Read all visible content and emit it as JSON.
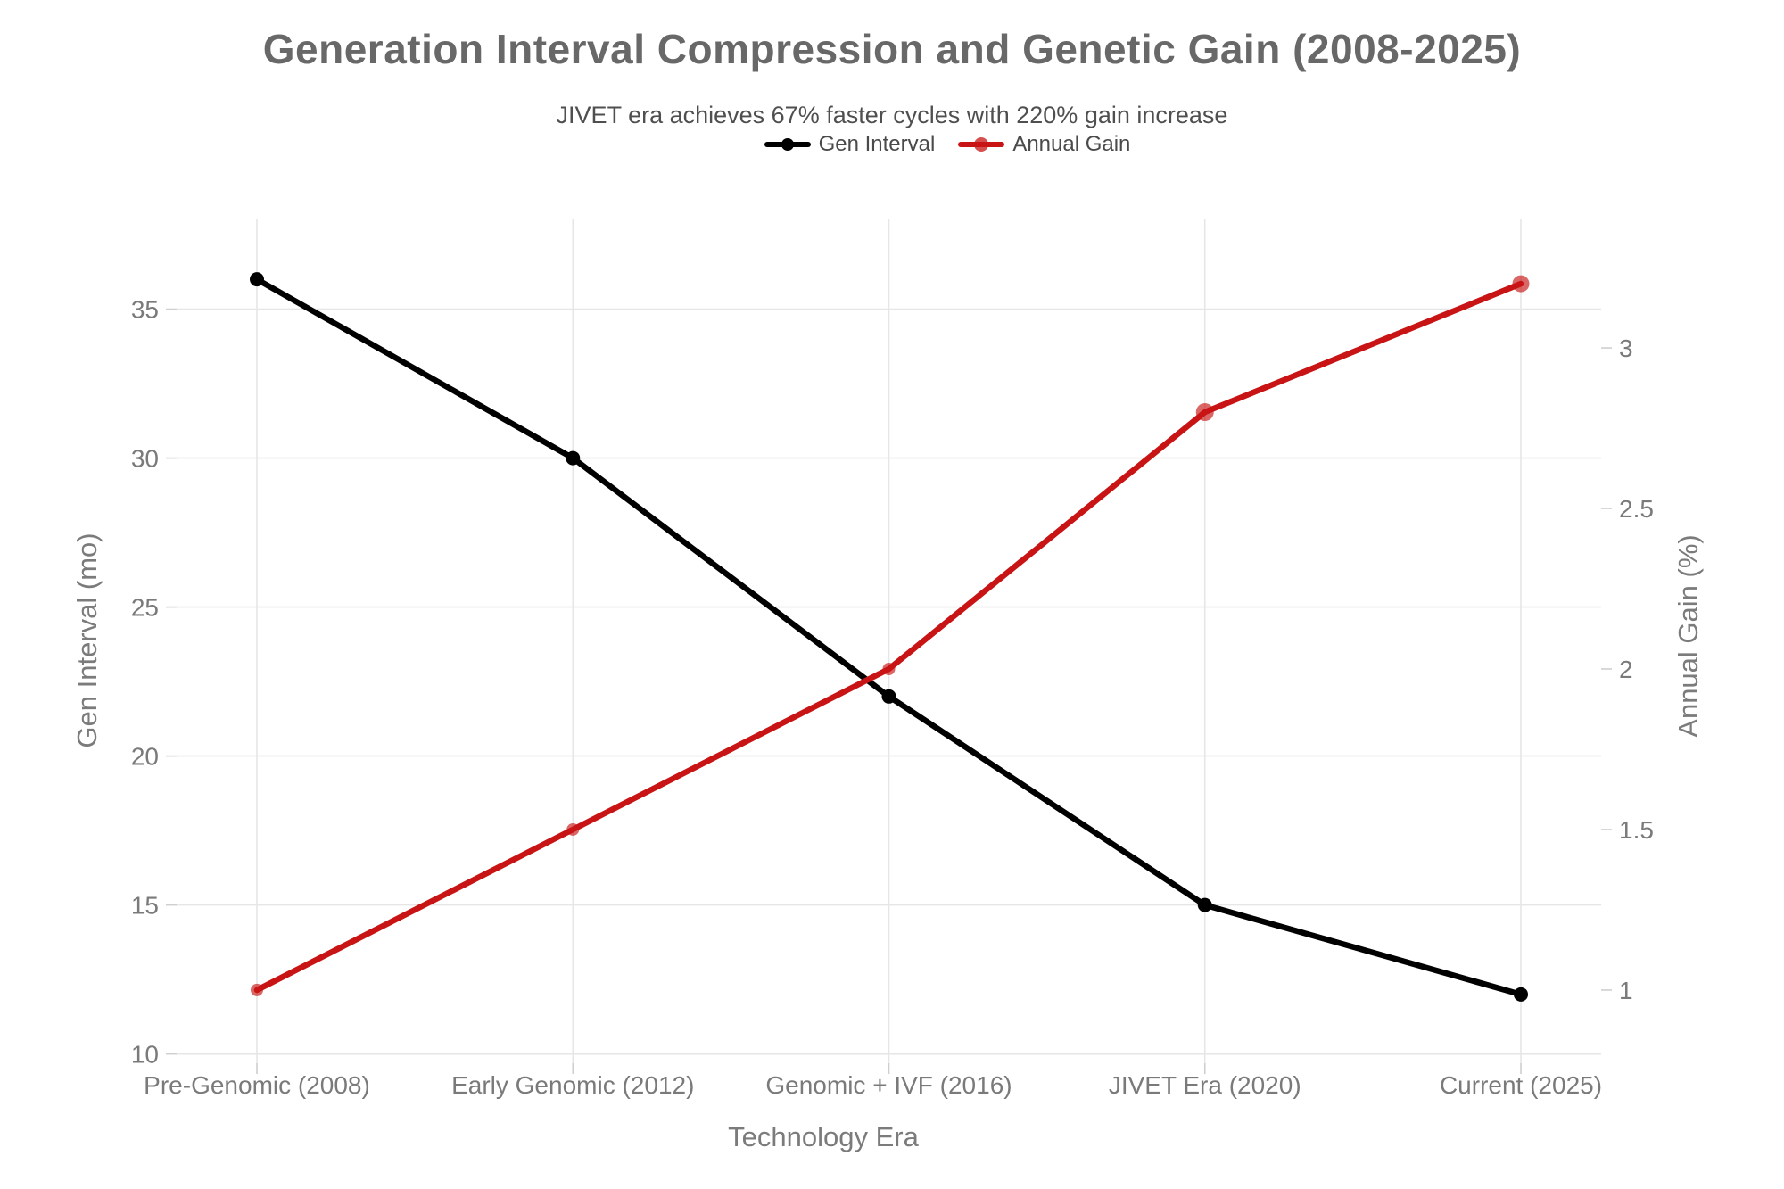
{
  "legend": {
    "items": [
      {
        "label": "Gen Interval",
        "color": "#000000",
        "marker_radius": 7,
        "marker_opacity": 1
      },
      {
        "label": "Annual Gain",
        "color": "#c81414",
        "marker_radius": 8,
        "marker_opacity": 0.75
      }
    ]
  },
  "chart_data": {
    "type": "line",
    "title": "Generation Interval Compression and Genetic Gain (2008-2025)",
    "subtitle": "JIVET era achieves 67% faster cycles with 220% gain increase",
    "xlabel": "Technology Era",
    "ylabel_left": "Gen Interval (mo)",
    "ylabel_right": "Annual Gain (%)",
    "categories": [
      "Pre-Genomic (2008)",
      "Early Genomic (2012)",
      "Genomic + IVF (2016)",
      "JIVET Era (2020)",
      "Current (2025)"
    ],
    "series": [
      {
        "name": "Gen Interval",
        "axis": "left",
        "color": "#000000",
        "values": [
          36,
          30,
          22,
          15,
          12
        ],
        "marker_radius": 8,
        "marker_opacity": 1
      },
      {
        "name": "Annual Gain",
        "axis": "right",
        "color": "#c81414",
        "values": [
          1.0,
          1.5,
          2.0,
          2.8,
          3.2
        ],
        "marker_radius": [
          7,
          7,
          7,
          10,
          9.5
        ],
        "marker_opacity": 0.65
      }
    ],
    "y_left_ticks": [
      10,
      15,
      20,
      25,
      30,
      35
    ],
    "y_right_ticks": [
      "1",
      "1.5",
      "2",
      "2.5",
      "3"
    ],
    "y_left_range": [
      9.69,
      38.04
    ],
    "y_right_range": [
      0.772,
      3.403
    ],
    "grid": true,
    "legend_position": "top-center"
  }
}
